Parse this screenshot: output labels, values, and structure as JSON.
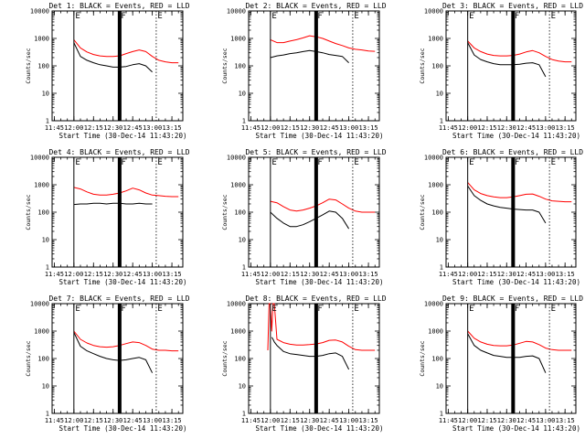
{
  "chart_data": [
    {
      "type": "line",
      "title": "Det 1: BLACK = Events, RED = LLD",
      "xlabel": "Start Time (30-Dec-14 11:43:20)",
      "ylabel": "Counts/sec",
      "x": [
        "12:00",
        "12:05",
        "12:10",
        "12:15",
        "12:20",
        "12:25",
        "12:30",
        "12:35",
        "12:40",
        "12:45",
        "12:50",
        "12:55",
        "13:00",
        "13:05",
        "13:10",
        "13:15",
        "13:20"
      ],
      "series": [
        {
          "name": "Events",
          "color": "#000000",
          "values": [
            700,
            220,
            160,
            130,
            110,
            100,
            90,
            90,
            95,
            110,
            120,
            100,
            60,
            null,
            null,
            null,
            null
          ]
        },
        {
          "name": "LLD",
          "color": "#ff0000",
          "values": [
            900,
            450,
            320,
            260,
            230,
            220,
            220,
            230,
            280,
            330,
            380,
            330,
            220,
            160,
            140,
            130,
            130
          ]
        }
      ]
    },
    {
      "type": "line",
      "title": "Det 2: BLACK = Events, RED = LLD",
      "xlabel": "Start Time (30-Dec-14 11:43:20)",
      "ylabel": "Counts/sec",
      "x": [
        "12:00",
        "12:05",
        "12:10",
        "12:15",
        "12:20",
        "12:25",
        "12:30",
        "12:35",
        "12:40",
        "12:45",
        "12:50",
        "12:55",
        "13:00",
        "13:05",
        "13:10",
        "13:15",
        "13:20"
      ],
      "series": [
        {
          "name": "Events",
          "color": "#000000",
          "values": [
            200,
            230,
            250,
            280,
            300,
            330,
            360,
            330,
            300,
            260,
            240,
            220,
            130,
            null,
            null,
            null,
            null
          ]
        },
        {
          "name": "LLD",
          "color": "#ff0000",
          "values": [
            900,
            700,
            700,
            800,
            900,
            1050,
            1250,
            1150,
            1000,
            800,
            650,
            550,
            450,
            400,
            380,
            350,
            340
          ]
        }
      ]
    },
    {
      "type": "line",
      "title": "Det 3: BLACK = Events, RED = LLD",
      "xlabel": "Start Time (30-Dec-14 11:43:20)",
      "ylabel": "Counts/sec",
      "x": [
        "12:00",
        "12:05",
        "12:10",
        "12:15",
        "12:20",
        "12:25",
        "12:30",
        "12:35",
        "12:40",
        "12:45",
        "12:50",
        "12:55",
        "13:00",
        "13:05",
        "13:10",
        "13:15",
        "13:20"
      ],
      "series": [
        {
          "name": "Events",
          "color": "#000000",
          "values": [
            700,
            250,
            170,
            140,
            120,
            110,
            110,
            110,
            115,
            125,
            130,
            110,
            40,
            null,
            null,
            null,
            null
          ]
        },
        {
          "name": "LLD",
          "color": "#ff0000",
          "values": [
            800,
            450,
            330,
            270,
            240,
            230,
            230,
            240,
            270,
            320,
            360,
            300,
            220,
            170,
            150,
            140,
            140
          ]
        }
      ]
    },
    {
      "type": "line",
      "title": "Det 4: BLACK = Events, RED = LLD",
      "xlabel": "Start Time (30-Dec-14 11:43:20)",
      "ylabel": "Counts/sec",
      "x": [
        "12:00",
        "12:05",
        "12:10",
        "12:15",
        "12:20",
        "12:25",
        "12:30",
        "12:35",
        "12:40",
        "12:45",
        "12:50",
        "12:55",
        "13:00",
        "13:05",
        "13:10",
        "13:15",
        "13:20"
      ],
      "series": [
        {
          "name": "Events",
          "color": "#000000",
          "values": [
            190,
            200,
            200,
            210,
            210,
            200,
            210,
            210,
            200,
            200,
            210,
            200,
            200,
            null,
            null,
            null,
            null
          ]
        },
        {
          "name": "LLD",
          "color": "#ff0000",
          "values": [
            800,
            700,
            550,
            450,
            420,
            420,
            450,
            500,
            600,
            750,
            650,
            500,
            420,
            400,
            380,
            370,
            370
          ]
        }
      ]
    },
    {
      "type": "line",
      "title": "Det 5: BLACK = Events, RED = LLD",
      "xlabel": "Start Time (30-Dec-14 11:43:20)",
      "ylabel": "Counts/sec",
      "x": [
        "12:00",
        "12:05",
        "12:10",
        "12:15",
        "12:20",
        "12:25",
        "12:30",
        "12:35",
        "12:40",
        "12:45",
        "12:50",
        "12:55",
        "13:00",
        "13:05",
        "13:10",
        "13:15",
        "13:20"
      ],
      "series": [
        {
          "name": "Events",
          "color": "#000000",
          "values": [
            100,
            60,
            40,
            30,
            30,
            35,
            45,
            60,
            80,
            110,
            100,
            60,
            25,
            null,
            null,
            null,
            null
          ]
        },
        {
          "name": "LLD",
          "color": "#ff0000",
          "values": [
            250,
            220,
            160,
            120,
            110,
            120,
            140,
            170,
            220,
            300,
            280,
            200,
            140,
            110,
            100,
            100,
            100
          ]
        }
      ]
    },
    {
      "type": "line",
      "title": "Det 6: BLACK = Events, RED = LLD",
      "xlabel": "Start Time (30-Dec-14 11:43:20)",
      "ylabel": "Counts/sec",
      "x": [
        "12:00",
        "12:05",
        "12:10",
        "12:15",
        "12:20",
        "12:25",
        "12:30",
        "12:35",
        "12:40",
        "12:45",
        "12:50",
        "12:55",
        "13:00",
        "13:05",
        "13:10",
        "13:15",
        "13:20"
      ],
      "series": [
        {
          "name": "Events",
          "color": "#000000",
          "values": [
            900,
            400,
            270,
            200,
            170,
            150,
            140,
            130,
            125,
            120,
            120,
            100,
            40,
            null,
            null,
            null,
            null
          ]
        },
        {
          "name": "LLD",
          "color": "#ff0000",
          "values": [
            1200,
            650,
            480,
            400,
            360,
            340,
            340,
            360,
            400,
            450,
            460,
            380,
            300,
            260,
            250,
            240,
            240
          ]
        }
      ]
    },
    {
      "type": "line",
      "title": "Det 7: BLACK = Events, RED = LLD",
      "xlabel": "Start Time (30-Dec-14 11:43:20)",
      "ylabel": "Counts/sec",
      "x": [
        "12:00",
        "12:05",
        "12:10",
        "12:15",
        "12:20",
        "12:25",
        "12:30",
        "12:35",
        "12:40",
        "12:45",
        "12:50",
        "12:55",
        "13:00",
        "13:05",
        "13:10",
        "13:15",
        "13:20"
      ],
      "series": [
        {
          "name": "Events",
          "color": "#000000",
          "values": [
            900,
            280,
            190,
            150,
            120,
            100,
            90,
            85,
            90,
            100,
            110,
            90,
            30,
            null,
            null,
            null,
            null
          ]
        },
        {
          "name": "LLD",
          "color": "#ff0000",
          "values": [
            1000,
            500,
            370,
            300,
            270,
            260,
            270,
            300,
            350,
            400,
            380,
            300,
            220,
            200,
            200,
            190,
            190
          ]
        }
      ]
    },
    {
      "type": "line",
      "title": "Det 8: BLACK = Events, RED = LLD",
      "xlabel": "Start Time (30-Dec-14 11:43:20)",
      "ylabel": "Counts/sec",
      "x": [
        "11:58",
        "11:59",
        "12:00",
        "12:01",
        "12:02",
        "12:03",
        "12:05",
        "12:10",
        "12:15",
        "12:20",
        "12:25",
        "12:30",
        "12:35",
        "12:40",
        "12:45",
        "12:50",
        "12:55",
        "13:00",
        "13:05",
        "13:10",
        "13:15",
        "13:20"
      ],
      "series": [
        {
          "name": "Events",
          "color": "#000000",
          "values": [
            null,
            null,
            null,
            600,
            500,
            400,
            300,
            180,
            150,
            140,
            130,
            120,
            120,
            130,
            150,
            160,
            120,
            40,
            null,
            null,
            null,
            null
          ]
        },
        {
          "name": "LLD",
          "color": "#ff0000",
          "values": [
            200,
            10000,
            10000,
            1000,
            10000,
            10000,
            500,
            380,
            330,
            310,
            310,
            320,
            340,
            380,
            460,
            470,
            400,
            280,
            210,
            200,
            200,
            200
          ]
        }
      ]
    },
    {
      "type": "line",
      "title": "Det 9: BLACK = Events, RED = LLD",
      "xlabel": "Start Time (30-Dec-14 11:43:20)",
      "ylabel": "Counts/sec",
      "x": [
        "12:00",
        "12:05",
        "12:10",
        "12:15",
        "12:20",
        "12:25",
        "12:30",
        "12:35",
        "12:40",
        "12:45",
        "12:50",
        "12:55",
        "13:00",
        "13:05",
        "13:10",
        "13:15",
        "13:20"
      ],
      "series": [
        {
          "name": "Events",
          "color": "#000000",
          "values": [
            800,
            300,
            200,
            160,
            130,
            120,
            110,
            110,
            110,
            120,
            125,
            100,
            30,
            null,
            null,
            null,
            null
          ]
        },
        {
          "name": "LLD",
          "color": "#ff0000",
          "values": [
            1000,
            550,
            400,
            330,
            300,
            290,
            290,
            310,
            360,
            420,
            400,
            320,
            240,
            210,
            200,
            200,
            200
          ]
        }
      ]
    }
  ],
  "axis": {
    "x_ticks": [
      "11:45",
      "12:00",
      "12:15",
      "12:30",
      "12:45",
      "13:00",
      "13:15"
    ],
    "y_ticks": [
      "1",
      "10",
      "100",
      "1000",
      "10000"
    ],
    "x_range": [
      "11:43:20",
      "13:23:20"
    ],
    "y_range": [
      1,
      10000
    ],
    "y_scale": "log"
  },
  "markers": {
    "thin_line": "12:00",
    "thick_line": "12:35",
    "dotted_line": "13:03",
    "labels_top": [
      "E",
      "F",
      "E"
    ]
  }
}
